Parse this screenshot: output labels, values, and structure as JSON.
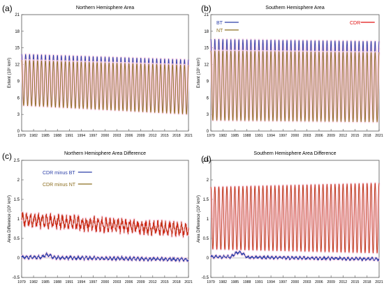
{
  "chart_data": [
    {
      "panel_label": "(a)",
      "type": "line",
      "title": "Northern Hemisphere Area",
      "ylabel": "Extent (10⁶ km²)",
      "xlim": [
        1979,
        2021
      ],
      "ylim": [
        0,
        21
      ],
      "yticks": [
        0,
        3,
        6,
        9,
        12,
        15,
        18,
        21
      ],
      "xticks": [
        1979,
        1982,
        1985,
        1988,
        1991,
        1994,
        1997,
        2000,
        2003,
        2006,
        2009,
        2012,
        2015,
        2018,
        2021
      ],
      "legend": [],
      "colors": {
        "BT": "#2b3fa8",
        "NT": "#8b6d1e",
        "CDR": "#e01010",
        "band": "#ffd6e8"
      },
      "series": [
        {
          "name": "CDR",
          "model": "seasonal",
          "max_start": 13.2,
          "max_end": 12.3,
          "min_start": 5.0,
          "min_end": 3.3
        },
        {
          "name": "BT",
          "model": "seasonal",
          "max_start": 13.9,
          "max_end": 12.9,
          "min_start": 5.4,
          "min_end": 3.8
        },
        {
          "name": "NT",
          "model": "seasonal",
          "max_start": 12.8,
          "max_end": 11.9,
          "min_start": 4.6,
          "min_end": 3.0
        }
      ]
    },
    {
      "panel_label": "(b)",
      "type": "line",
      "title": "Southern Hemisphere Area",
      "ylabel": "Extent (10⁶ km²)",
      "xlim": [
        1979,
        2021
      ],
      "ylim": [
        0,
        21
      ],
      "yticks": [
        0,
        3,
        6,
        9,
        12,
        15,
        18,
        21
      ],
      "xticks": [
        1979,
        1982,
        1985,
        1988,
        1991,
        1994,
        1997,
        2000,
        2003,
        2006,
        2009,
        2012,
        2015,
        2018,
        2021
      ],
      "legend": [
        "BT",
        "NT",
        "CDR"
      ],
      "colors": {
        "BT": "#2b3fa8",
        "NT": "#8b6d1e",
        "CDR": "#e01010",
        "band": "#ffd6e8"
      },
      "series": [
        {
          "name": "CDR",
          "model": "seasonal",
          "max_start": 15.3,
          "max_end": 15.0,
          "min_start": 2.3,
          "min_end": 2.0
        },
        {
          "name": "BT",
          "model": "seasonal",
          "max_start": 16.6,
          "max_end": 16.2,
          "min_start": 2.7,
          "min_end": 2.4
        },
        {
          "name": "NT",
          "model": "seasonal",
          "max_start": 14.5,
          "max_end": 14.2,
          "min_start": 1.9,
          "min_end": 1.6
        }
      ]
    },
    {
      "panel_label": "(c)",
      "type": "line",
      "title": "Northern Hemisphere Area Difference",
      "ylabel": "Area Difference (10⁶ km²)",
      "xlim": [
        1979,
        2021
      ],
      "ylim": [
        -0.5,
        2.5
      ],
      "yticks": [
        -0.5,
        0,
        0.5,
        1,
        1.5,
        2,
        2.5
      ],
      "xticks": [
        1979,
        1982,
        1985,
        1988,
        1991,
        1994,
        1997,
        2000,
        2003,
        2006,
        2009,
        2012,
        2015,
        2018,
        2021
      ],
      "legend": [
        "CDR minus BT",
        "CDR minus NT"
      ],
      "colors": {
        "CDR minus BT": "#2b3fa8",
        "CDR minus NT": "#8b6d1e",
        "red": "#e01010",
        "band": "#ffd6e8"
      },
      "series": [
        {
          "name": "CDR minus NT",
          "model": "noisy",
          "base_start": 0.98,
          "base_end": 0.72,
          "amp": 0.22
        },
        {
          "name": "CDR minus BT",
          "model": "noisy",
          "base_start": 0.02,
          "base_end": -0.04,
          "amp": 0.06,
          "bump": [
            1984,
            1987,
            0.07
          ]
        }
      ]
    },
    {
      "panel_label": "(d)",
      "type": "line",
      "title": "Southern Hemisphere Area Difference",
      "ylabel": "Area Difference (10⁶ km²)",
      "xlim": [
        1979,
        2021
      ],
      "ylim": [
        -0.5,
        2.5
      ],
      "yticks": [
        -0.5,
        0,
        0.5,
        1,
        1.5,
        2,
        2.5
      ],
      "xticks": [
        1979,
        1982,
        1985,
        1988,
        1991,
        1994,
        1997,
        2000,
        2003,
        2006,
        2009,
        2012,
        2015,
        2018,
        2021
      ],
      "legend": [],
      "colors": {
        "CDR minus BT": "#2b3fa8",
        "CDR minus NT": "#8b6d1e",
        "red": "#e01010",
        "band": "#ffd6e8"
      },
      "series": [
        {
          "name": "CDR minus NT",
          "model": "seasonal",
          "max_start": 1.82,
          "max_end": 1.92,
          "min_start": 0.22,
          "min_end": 0.12
        },
        {
          "name": "CDR minus BT",
          "model": "noisy",
          "base_start": 0.03,
          "base_end": -0.03,
          "amp": 0.05,
          "bump": [
            1984,
            1988,
            0.12
          ]
        }
      ]
    }
  ]
}
